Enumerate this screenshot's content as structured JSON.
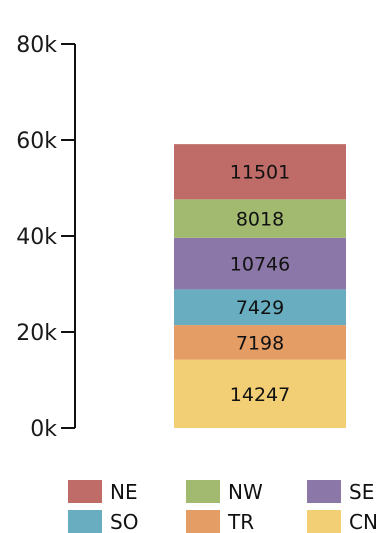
{
  "chart_data": {
    "type": "bar",
    "stacked": true,
    "categories": [
      ""
    ],
    "ylim": [
      0,
      80000
    ],
    "y_ticks": [
      0,
      20000,
      40000,
      60000,
      80000
    ],
    "y_tick_labels": [
      "0k",
      "20k",
      "40k",
      "60k",
      "80k"
    ],
    "grid": false,
    "legend_position": "bottom",
    "series": [
      {
        "name": "CN",
        "values": [
          14247
        ],
        "color": "#f2cf75",
        "label": "14247"
      },
      {
        "name": "TR",
        "values": [
          7198
        ],
        "color": "#e59d66",
        "label": "7198"
      },
      {
        "name": "SO",
        "values": [
          7429
        ],
        "color": "#68aec0",
        "label": "7429"
      },
      {
        "name": "SE",
        "values": [
          10746
        ],
        "color": "#8c78a8",
        "label": "10746"
      },
      {
        "name": "NW",
        "values": [
          8018
        ],
        "color": "#a1ba6f",
        "label": "8018"
      },
      {
        "name": "NE",
        "values": [
          11501
        ],
        "color": "#bf6b67",
        "label": "11501"
      }
    ],
    "legend_order": [
      "NE",
      "NW",
      "SE",
      "SO",
      "TR",
      "CN"
    ]
  }
}
